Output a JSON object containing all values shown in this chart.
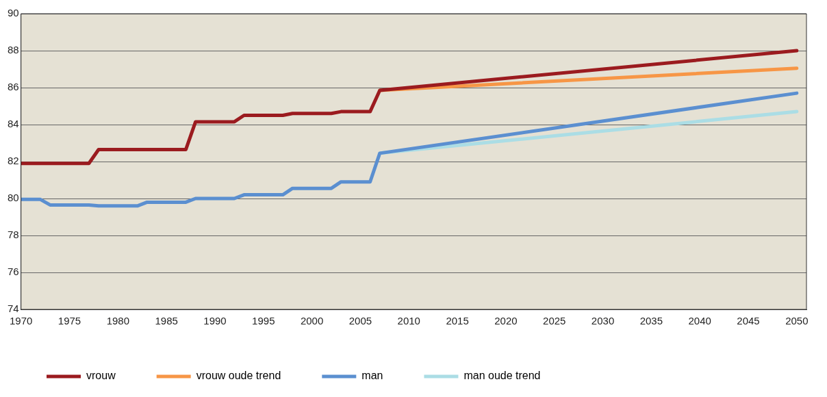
{
  "chart_data": {
    "type": "line",
    "xlim": [
      1970,
      2051
    ],
    "xticks": [
      1970,
      1975,
      1980,
      1985,
      1990,
      1995,
      2000,
      2005,
      2010,
      2015,
      2020,
      2025,
      2030,
      2035,
      2040,
      2045,
      2050
    ],
    "ylim": [
      74,
      90
    ],
    "yticks": [
      74,
      76,
      78,
      80,
      82,
      84,
      86,
      88,
      90
    ],
    "grid": "y",
    "legend": "bottom",
    "marker": "none",
    "line_style": "solid",
    "series": [
      {
        "name": "vrouw",
        "color": "#9b1b1f",
        "x": [
          1970,
          1977,
          1978,
          1987,
          1988,
          1992,
          1993,
          1997,
          1998,
          2002,
          2003,
          2006,
          2007,
          2050
        ],
        "values": [
          81.9,
          81.9,
          82.65,
          82.65,
          84.15,
          84.15,
          84.5,
          84.5,
          84.6,
          84.6,
          84.7,
          84.7,
          85.85,
          88.0
        ]
      },
      {
        "name": "vrouw oude trend",
        "color": "#f79646",
        "x": [
          2007,
          2050
        ],
        "values": [
          85.85,
          87.05
        ]
      },
      {
        "name": "man",
        "color": "#5b8fd0",
        "x": [
          1970,
          1972,
          1973,
          1977,
          1978,
          1982,
          1983,
          1987,
          1988,
          1992,
          1993,
          1997,
          1998,
          2002,
          2003,
          2006,
          2007,
          2050
        ],
        "values": [
          79.95,
          79.95,
          79.65,
          79.65,
          79.6,
          79.6,
          79.8,
          79.8,
          80.0,
          80.0,
          80.2,
          80.2,
          80.55,
          80.55,
          80.9,
          80.9,
          82.45,
          85.7
        ]
      },
      {
        "name": "man oude trend",
        "color": "#abdde5",
        "x": [
          2007,
          2050
        ],
        "values": [
          82.45,
          84.7
        ]
      }
    ]
  }
}
